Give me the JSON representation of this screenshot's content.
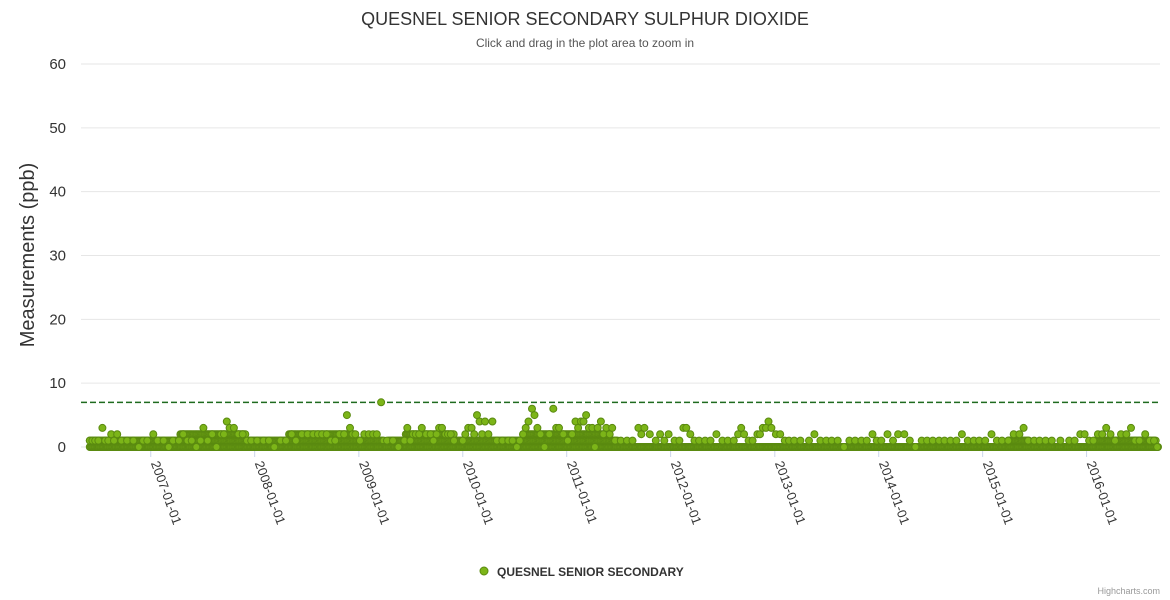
{
  "chart_data": {
    "type": "scatter",
    "title": "QUESNEL SENIOR SECONDARY SULPHUR DIOXIDE",
    "subtitle": "Click and drag in the plot area to zoom in",
    "ylabel": "Measurements (ppb)",
    "xlabel": "",
    "ylim": [
      0,
      60
    ],
    "yticks": [
      "0",
      "10",
      "20",
      "30",
      "40",
      "50",
      "60"
    ],
    "xlim": [
      "2006-05-01",
      "2016-09-15"
    ],
    "xticks": [
      "2007-01-01",
      "2008-01-01",
      "2009-01-01",
      "2010-01-01",
      "2011-01-01",
      "2012-01-01",
      "2013-01-01",
      "2014-01-01",
      "2015-01-01",
      "2016-01-01"
    ],
    "grid": true,
    "legend_position": "bottom-center",
    "reference_line": {
      "value": 7,
      "color": "#1f6b1f",
      "style": "dashed"
    },
    "series": [
      {
        "name": "QUESNEL SENIOR SECONDARY",
        "color": "#7cb518",
        "points": [
          [
            "2006-06-01",
            1
          ],
          [
            "2006-06-10",
            1
          ],
          [
            "2006-06-20",
            1
          ],
          [
            "2006-07-01",
            1
          ],
          [
            "2006-07-15",
            3
          ],
          [
            "2006-07-25",
            1
          ],
          [
            "2006-08-05",
            1
          ],
          [
            "2006-08-15",
            2
          ],
          [
            "2006-08-25",
            1
          ],
          [
            "2006-09-05",
            2
          ],
          [
            "2006-09-20",
            1
          ],
          [
            "2006-10-10",
            1
          ],
          [
            "2006-11-01",
            1
          ],
          [
            "2006-11-20",
            0
          ],
          [
            "2006-12-05",
            1
          ],
          [
            "2006-12-20",
            1
          ],
          [
            "2007-01-10",
            2
          ],
          [
            "2007-01-25",
            1
          ],
          [
            "2007-02-15",
            1
          ],
          [
            "2007-03-05",
            0
          ],
          [
            "2007-03-20",
            1
          ],
          [
            "2007-04-10",
            1
          ],
          [
            "2007-04-25",
            2
          ],
          [
            "2007-05-10",
            1
          ],
          [
            "2007-05-25",
            1
          ],
          [
            "2007-06-10",
            0
          ],
          [
            "2007-06-25",
            1
          ],
          [
            "2007-07-05",
            3
          ],
          [
            "2007-07-20",
            1
          ],
          [
            "2007-08-05",
            2
          ],
          [
            "2007-08-20",
            0
          ],
          [
            "2007-09-05",
            2
          ],
          [
            "2007-09-15",
            2
          ],
          [
            "2007-09-25",
            4
          ],
          [
            "2007-10-05",
            3
          ],
          [
            "2007-10-20",
            3
          ],
          [
            "2007-11-05",
            2
          ],
          [
            "2007-11-20",
            2
          ],
          [
            "2007-12-05",
            1
          ],
          [
            "2007-12-20",
            1
          ],
          [
            "2008-01-10",
            1
          ],
          [
            "2008-02-01",
            1
          ],
          [
            "2008-02-20",
            1
          ],
          [
            "2008-03-10",
            0
          ],
          [
            "2008-04-01",
            1
          ],
          [
            "2008-04-20",
            1
          ],
          [
            "2008-05-10",
            2
          ],
          [
            "2008-05-25",
            1
          ],
          [
            "2008-06-15",
            2
          ],
          [
            "2008-07-05",
            2
          ],
          [
            "2008-07-25",
            2
          ],
          [
            "2008-08-10",
            2
          ],
          [
            "2008-08-25",
            2
          ],
          [
            "2008-09-10",
            2
          ],
          [
            "2008-09-25",
            1
          ],
          [
            "2008-10-10",
            1
          ],
          [
            "2008-10-25",
            2
          ],
          [
            "2008-11-10",
            2
          ],
          [
            "2008-11-20",
            5
          ],
          [
            "2008-12-01",
            3
          ],
          [
            "2008-12-10",
            2
          ],
          [
            "2008-12-20",
            2
          ],
          [
            "2009-01-05",
            1
          ],
          [
            "2009-01-20",
            2
          ],
          [
            "2009-02-05",
            2
          ],
          [
            "2009-02-20",
            2
          ],
          [
            "2009-03-05",
            2
          ],
          [
            "2009-03-20",
            7
          ],
          [
            "2009-04-10",
            1
          ],
          [
            "2009-05-01",
            1
          ],
          [
            "2009-05-20",
            0
          ],
          [
            "2009-06-10",
            1
          ],
          [
            "2009-06-20",
            3
          ],
          [
            "2009-07-01",
            1
          ],
          [
            "2009-07-10",
            2
          ],
          [
            "2009-07-20",
            2
          ],
          [
            "2009-08-01",
            2
          ],
          [
            "2009-08-10",
            3
          ],
          [
            "2009-08-25",
            2
          ],
          [
            "2009-09-10",
            2
          ],
          [
            "2009-09-20",
            1
          ],
          [
            "2009-10-01",
            2
          ],
          [
            "2009-10-10",
            3
          ],
          [
            "2009-10-20",
            3
          ],
          [
            "2009-11-01",
            2
          ],
          [
            "2009-11-10",
            2
          ],
          [
            "2009-11-20",
            2
          ],
          [
            "2009-12-01",
            1
          ],
          [
            "2010-01-01",
            1
          ],
          [
            "2010-01-10",
            2
          ],
          [
            "2010-01-20",
            3
          ],
          [
            "2010-02-01",
            3
          ],
          [
            "2010-02-10",
            2
          ],
          [
            "2010-02-20",
            5
          ],
          [
            "2010-03-01",
            4
          ],
          [
            "2010-03-10",
            2
          ],
          [
            "2010-03-20",
            4
          ],
          [
            "2010-04-01",
            2
          ],
          [
            "2010-04-15",
            4
          ],
          [
            "2010-05-01",
            1
          ],
          [
            "2010-05-20",
            1
          ],
          [
            "2010-06-10",
            1
          ],
          [
            "2010-06-25",
            1
          ],
          [
            "2010-07-10",
            0
          ],
          [
            "2010-07-20",
            1
          ],
          [
            "2010-08-01",
            2
          ],
          [
            "2010-08-10",
            3
          ],
          [
            "2010-08-20",
            4
          ],
          [
            "2010-09-01",
            6
          ],
          [
            "2010-09-10",
            5
          ],
          [
            "2010-09-20",
            3
          ],
          [
            "2010-10-01",
            2
          ],
          [
            "2010-10-15",
            0
          ],
          [
            "2010-11-01",
            2
          ],
          [
            "2010-11-15",
            6
          ],
          [
            "2010-11-25",
            3
          ],
          [
            "2010-12-05",
            3
          ],
          [
            "2010-12-20",
            2
          ],
          [
            "2011-01-05",
            1
          ],
          [
            "2011-01-20",
            2
          ],
          [
            "2011-02-01",
            4
          ],
          [
            "2011-02-10",
            3
          ],
          [
            "2011-02-20",
            4
          ],
          [
            "2011-03-01",
            4
          ],
          [
            "2011-03-10",
            5
          ],
          [
            "2011-03-20",
            3
          ],
          [
            "2011-04-01",
            3
          ],
          [
            "2011-04-10",
            0
          ],
          [
            "2011-04-20",
            3
          ],
          [
            "2011-05-01",
            4
          ],
          [
            "2011-05-10",
            2
          ],
          [
            "2011-05-20",
            3
          ],
          [
            "2011-06-01",
            2
          ],
          [
            "2011-06-10",
            3
          ],
          [
            "2011-06-20",
            1
          ],
          [
            "2011-07-10",
            1
          ],
          [
            "2011-08-01",
            1
          ],
          [
            "2011-08-20",
            1
          ],
          [
            "2011-09-10",
            3
          ],
          [
            "2011-09-20",
            2
          ],
          [
            "2011-10-01",
            3
          ],
          [
            "2011-10-20",
            2
          ],
          [
            "2011-11-10",
            1
          ],
          [
            "2011-11-25",
            2
          ],
          [
            "2011-12-10",
            1
          ],
          [
            "2011-12-25",
            2
          ],
          [
            "2012-01-15",
            1
          ],
          [
            "2012-02-01",
            1
          ],
          [
            "2012-02-15",
            3
          ],
          [
            "2012-02-25",
            3
          ],
          [
            "2012-03-10",
            2
          ],
          [
            "2012-03-25",
            1
          ],
          [
            "2012-04-10",
            1
          ],
          [
            "2012-05-01",
            1
          ],
          [
            "2012-05-20",
            1
          ],
          [
            "2012-06-10",
            2
          ],
          [
            "2012-07-01",
            1
          ],
          [
            "2012-07-20",
            1
          ],
          [
            "2012-08-10",
            1
          ],
          [
            "2012-08-25",
            2
          ],
          [
            "2012-09-05",
            3
          ],
          [
            "2012-09-15",
            2
          ],
          [
            "2012-10-01",
            1
          ],
          [
            "2012-10-15",
            1
          ],
          [
            "2012-11-01",
            2
          ],
          [
            "2012-11-10",
            2
          ],
          [
            "2012-11-20",
            3
          ],
          [
            "2012-12-01",
            3
          ],
          [
            "2012-12-10",
            4
          ],
          [
            "2012-12-20",
            3
          ],
          [
            "2013-01-05",
            2
          ],
          [
            "2013-01-20",
            2
          ],
          [
            "2013-02-05",
            1
          ],
          [
            "2013-02-20",
            1
          ],
          [
            "2013-03-10",
            1
          ],
          [
            "2013-04-01",
            1
          ],
          [
            "2013-05-01",
            1
          ],
          [
            "2013-05-20",
            2
          ],
          [
            "2013-06-10",
            1
          ],
          [
            "2013-07-01",
            1
          ],
          [
            "2013-07-20",
            1
          ],
          [
            "2013-08-10",
            1
          ],
          [
            "2013-09-01",
            0
          ],
          [
            "2013-09-20",
            1
          ],
          [
            "2013-10-10",
            1
          ],
          [
            "2013-11-01",
            1
          ],
          [
            "2013-11-20",
            1
          ],
          [
            "2013-12-10",
            2
          ],
          [
            "2013-12-25",
            1
          ],
          [
            "2014-01-10",
            1
          ],
          [
            "2014-02-01",
            2
          ],
          [
            "2014-02-20",
            1
          ],
          [
            "2014-03-10",
            2
          ],
          [
            "2014-04-01",
            2
          ],
          [
            "2014-04-20",
            1
          ],
          [
            "2014-05-10",
            0
          ],
          [
            "2014-06-01",
            1
          ],
          [
            "2014-06-20",
            1
          ],
          [
            "2014-07-10",
            1
          ],
          [
            "2014-08-01",
            1
          ],
          [
            "2014-08-20",
            1
          ],
          [
            "2014-09-10",
            1
          ],
          [
            "2014-10-01",
            1
          ],
          [
            "2014-10-20",
            2
          ],
          [
            "2014-11-10",
            1
          ],
          [
            "2014-12-01",
            1
          ],
          [
            "2014-12-20",
            1
          ],
          [
            "2015-01-10",
            1
          ],
          [
            "2015-02-01",
            2
          ],
          [
            "2015-02-20",
            1
          ],
          [
            "2015-03-10",
            1
          ],
          [
            "2015-04-01",
            1
          ],
          [
            "2015-04-20",
            2
          ],
          [
            "2015-05-10",
            2
          ],
          [
            "2015-05-25",
            3
          ],
          [
            "2015-06-10",
            1
          ],
          [
            "2015-07-01",
            1
          ],
          [
            "2015-07-20",
            1
          ],
          [
            "2015-08-10",
            1
          ],
          [
            "2015-09-01",
            1
          ],
          [
            "2015-10-01",
            1
          ],
          [
            "2015-11-01",
            1
          ],
          [
            "2015-11-20",
            1
          ],
          [
            "2015-12-10",
            2
          ],
          [
            "2015-12-25",
            2
          ],
          [
            "2016-01-10",
            1
          ],
          [
            "2016-01-25",
            1
          ],
          [
            "2016-02-10",
            2
          ],
          [
            "2016-02-25",
            2
          ],
          [
            "2016-03-10",
            3
          ],
          [
            "2016-03-25",
            2
          ],
          [
            "2016-04-10",
            1
          ],
          [
            "2016-05-01",
            2
          ],
          [
            "2016-05-20",
            2
          ],
          [
            "2016-06-05",
            3
          ],
          [
            "2016-06-20",
            1
          ],
          [
            "2016-07-05",
            1
          ],
          [
            "2016-07-25",
            2
          ],
          [
            "2016-08-10",
            1
          ],
          [
            "2016-08-25",
            1
          ],
          [
            "2016-09-05",
            0
          ]
        ],
        "baseline_ranges": [
          {
            "from": "2006-06-01",
            "to": "2009-04-01",
            "value": 1
          },
          {
            "from": "2006-06-01",
            "to": "2012-06-30",
            "value": 0
          },
          {
            "from": "2007-04-15",
            "to": "2007-11-30",
            "value": 2
          },
          {
            "from": "2008-05-01",
            "to": "2008-12-15",
            "value": 2
          },
          {
            "from": "2009-04-15",
            "to": "2011-06-30",
            "value": 1
          },
          {
            "from": "2009-06-15",
            "to": "2009-11-30",
            "value": 2
          },
          {
            "from": "2010-08-01",
            "to": "2011-05-31",
            "value": 2
          },
          {
            "from": "2012-07-01",
            "to": "2014-12-31",
            "value": 0
          },
          {
            "from": "2015-01-01",
            "to": "2016-09-10",
            "value": 0
          },
          {
            "from": "2015-04-01",
            "to": "2015-06-15",
            "value": 1
          },
          {
            "from": "2016-02-01",
            "to": "2016-08-31",
            "value": 1
          }
        ]
      }
    ]
  },
  "credits": "Highcharts.com"
}
